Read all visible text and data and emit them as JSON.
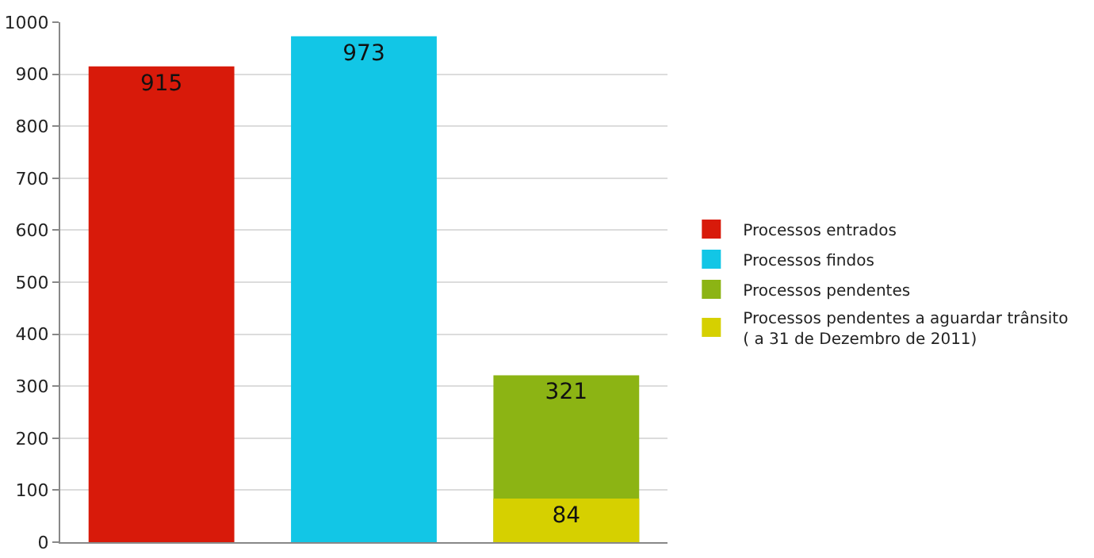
{
  "chart_data": {
    "type": "bar",
    "categories": [
      null,
      null,
      null
    ],
    "series": [
      {
        "name": "Processos entrados",
        "color": "#d81a0a",
        "values": [
          915,
          null,
          null
        ]
      },
      {
        "name": "Processos findos",
        "color": "#12c6e6",
        "values": [
          null,
          973,
          null
        ]
      },
      {
        "name": "Processos pendentes",
        "color": "#8cb414",
        "values": [
          null,
          null,
          321
        ]
      },
      {
        "name": "Processos pendentes a aguardar trânsito\n( a 31 de Dezembro de 2011)",
        "color": "#d6d000",
        "values": [
          null,
          null,
          84
        ]
      }
    ],
    "data_labels": true,
    "ylim": [
      0,
      1000
    ],
    "yticks": [
      0,
      100,
      200,
      300,
      400,
      500,
      600,
      700,
      800,
      900,
      1000
    ],
    "grid": "y",
    "legend": "right"
  }
}
